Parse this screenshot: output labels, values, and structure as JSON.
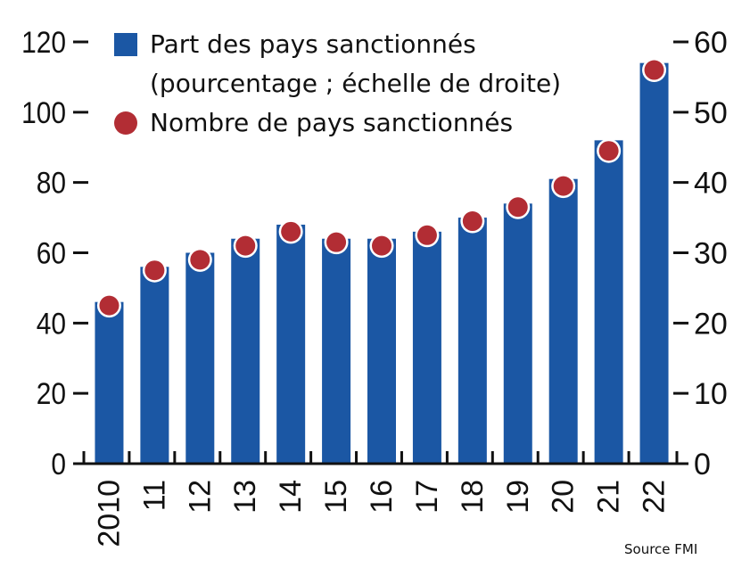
{
  "chart_data": {
    "type": "bar",
    "title": "",
    "categories": [
      "2010",
      "11",
      "12",
      "13",
      "14",
      "15",
      "16",
      "17",
      "18",
      "19",
      "20",
      "21",
      "22"
    ],
    "series": [
      {
        "name": "Part des pays sanctionnés (pourcentage ; échelle de droite)",
        "type": "bar",
        "axis": "right",
        "color": "#1b57a4",
        "values": [
          23,
          28,
          30,
          32,
          34,
          32,
          32,
          33,
          35,
          37,
          40.5,
          46,
          57
        ]
      },
      {
        "name": "Nombre de pays sanctionnés",
        "type": "scatter",
        "axis": "left",
        "color": "#b22d34",
        "values": [
          45,
          55,
          58,
          62,
          66,
          63,
          62,
          65,
          69,
          73,
          79,
          89,
          112
        ]
      }
    ],
    "left_axis": {
      "ticks": [
        0,
        20,
        40,
        60,
        80,
        100,
        120
      ],
      "ylim": [
        0,
        120
      ]
    },
    "right_axis": {
      "ticks": [
        0,
        10,
        20,
        30,
        40,
        50,
        60
      ],
      "ylim": [
        0,
        60
      ]
    },
    "xlabel": "",
    "ylabel": "",
    "grid": false,
    "legend_position": "top-left inside"
  },
  "legend": {
    "bar_label_line1": "Part des pays sanctionnés",
    "bar_label_line2": "(pourcentage ; échelle de droite)",
    "dot_label": "Nombre de pays sanctionnés"
  },
  "source": "Source FMI",
  "colors": {
    "bar": "#1b57a4",
    "dot": "#b22d34",
    "axis": "#111111"
  }
}
